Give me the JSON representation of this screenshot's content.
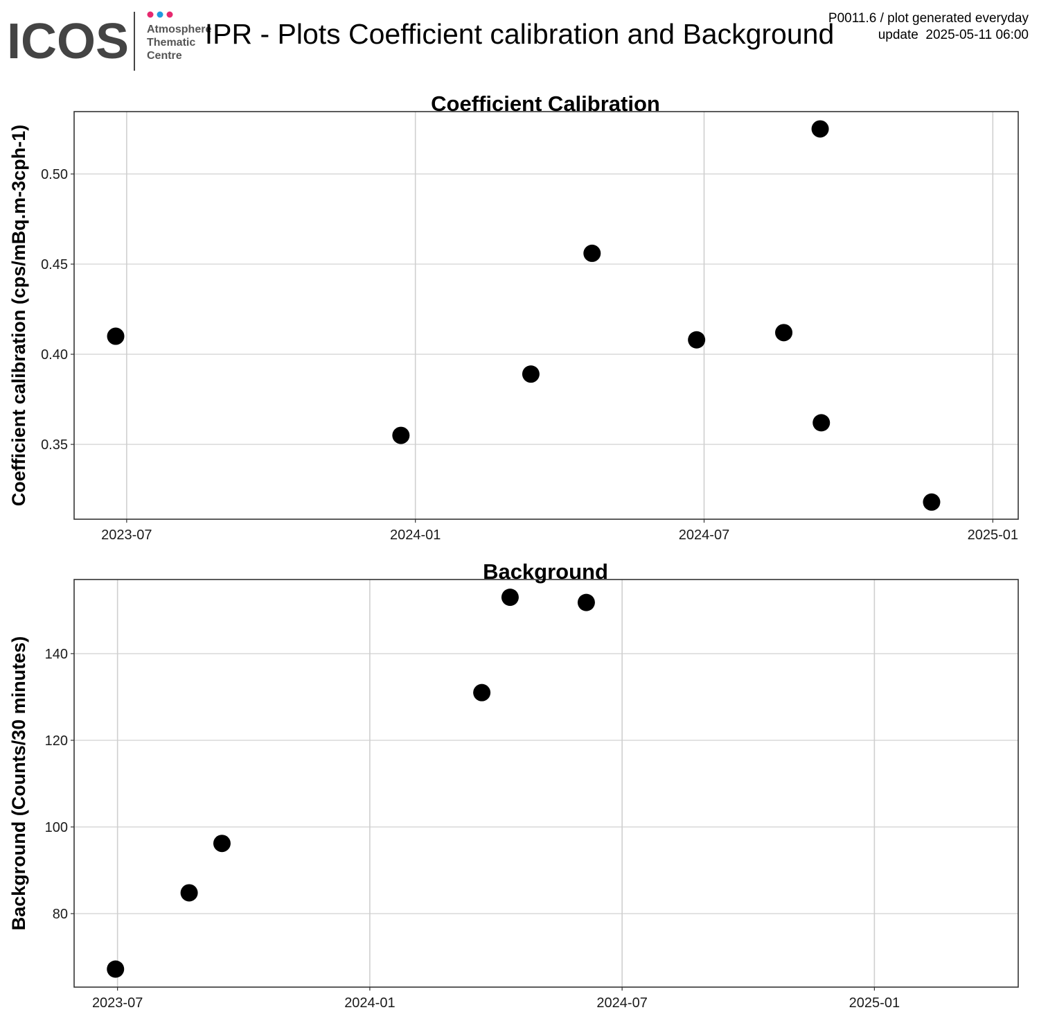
{
  "header": {
    "logo": "ICOS",
    "logo_subtitle": [
      "Atmosphere",
      "Thematic",
      "Centre"
    ],
    "title": "IPR - Plots Coefficient calibration and Background",
    "info": [
      "P0011.6 / plot generated everyday",
      "update  2025-05-11 06:00"
    ]
  },
  "chart_data": [
    {
      "type": "scatter",
      "title": "Coefficient Calibration",
      "ylabel": "Coefficient calibration (cps/mBq.m-3cph-1)",
      "x": [
        2023.481,
        2023.975,
        2024.2,
        2024.306,
        2024.487,
        2024.638,
        2024.701,
        2024.703,
        2024.894
      ],
      "values": [
        0.41,
        0.355,
        0.389,
        0.456,
        0.408,
        0.412,
        0.525,
        0.362,
        0.318
      ],
      "color": "#000000",
      "xlim": [
        2023.409,
        2025.044
      ],
      "xticks": [
        {
          "value": 2023.5,
          "label": "2023-07"
        },
        {
          "value": 2024.0,
          "label": "2024-01"
        },
        {
          "value": 2024.5,
          "label": "2024-07"
        },
        {
          "value": 2025.0,
          "label": "2025-01"
        }
      ],
      "ylim": [
        0.3085,
        0.5346
      ],
      "yticks": [
        {
          "value": 0.35,
          "label": "0.35"
        },
        {
          "value": 0.4,
          "label": "0.40"
        },
        {
          "value": 0.45,
          "label": "0.45"
        },
        {
          "value": 0.5,
          "label": "0.50"
        }
      ],
      "grid": true
    },
    {
      "type": "scatter",
      "title": "Background",
      "ylabel": "Background (Counts/30 minutes)",
      "x": [
        2023.496,
        2023.642,
        2023.707,
        2024.222,
        2024.278,
        2024.429
      ],
      "values": [
        67.2,
        84.8,
        96.2,
        131.0,
        153.0,
        151.8
      ],
      "color": "#000000",
      "xlim": [
        2023.414,
        2025.285
      ],
      "xticks": [
        {
          "value": 2023.5,
          "label": "2023-07"
        },
        {
          "value": 2024.0,
          "label": "2024-01"
        },
        {
          "value": 2024.5,
          "label": "2024-07"
        },
        {
          "value": 2025.0,
          "label": "2025-01"
        }
      ],
      "ylim": [
        63.04,
        157.1
      ],
      "yticks": [
        80,
        100,
        120,
        140
      ],
      "grid": true
    }
  ]
}
